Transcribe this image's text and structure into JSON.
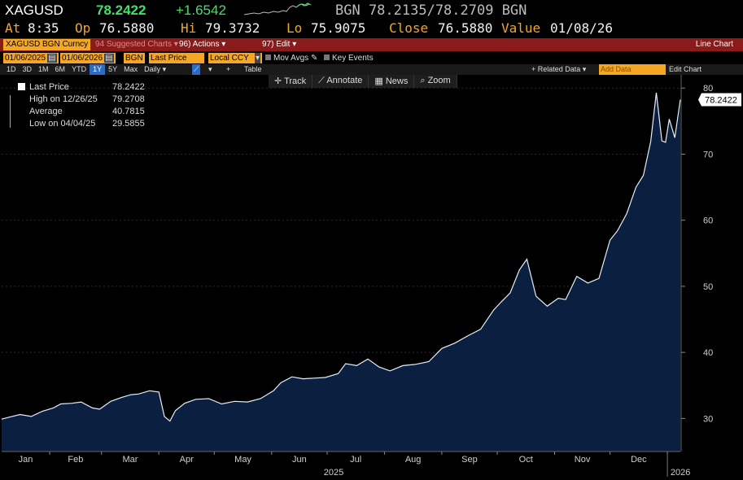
{
  "quote": {
    "ticker": "XAGUSD",
    "last": "78.2422",
    "change": "+1.6542",
    "bid_ask": "BGN 78.2135/78.2709 BGN",
    "at_label": "At",
    "at_value": "8:35",
    "open_label": "Op",
    "open_value": "76.5880",
    "high_label": "Hi",
    "high_value": "79.3732",
    "low_label": "Lo",
    "low_value": "75.9075",
    "close_label": "Close",
    "close_value": "76.5880",
    "value_label": "Value",
    "value_date": "01/08/26"
  },
  "toolbar": {
    "security": "XAGUSD BGN Curncy",
    "suggested": "94 Suggested Charts",
    "actions": "96) Actions",
    "edit": "97) Edit",
    "chart_type": "Line Chart"
  },
  "controls": {
    "start_date": "01/06/2025",
    "end_date": "01/06/2026",
    "source": "BGN",
    "field": "Last Price",
    "currency": "Local CCY",
    "mov_avgs": "Mov Avgs",
    "key_events": "Key Events"
  },
  "periods": {
    "items": [
      "1D",
      "3D",
      "1M",
      "6M",
      "YTD",
      "1Y",
      "5Y",
      "Max",
      "Daily"
    ],
    "selected": "1Y",
    "table": "Table",
    "related_data": "+ Related Data",
    "add_data": "Add Data",
    "edit_chart": "Edit Chart"
  },
  "chart_tools": {
    "track": "Track",
    "annotate": "Annotate",
    "news": "News",
    "zoom": "Zoom"
  },
  "legend": {
    "last_label": "Last Price",
    "last_value": "78.2422",
    "high_label": "High on 12/26/25",
    "high_value": "79.2708",
    "avg_label": "Average",
    "avg_value": "40.7815",
    "low_label": "Low on 04/04/25",
    "low_value": "29.5855"
  },
  "colors": {
    "area_fill": "#0b2040",
    "line": "#e8eef8",
    "up": "#3fe26a",
    "label_orange": "#f5a623",
    "toolbar_red": "#8b1a1a"
  },
  "chart_data": {
    "type": "area",
    "ylim": [
      25,
      82
    ],
    "yticks": [
      30,
      40,
      50,
      60,
      70,
      80
    ],
    "xlim": [
      "2025-01-06",
      "2026-01-08"
    ],
    "month_ticks": [
      "2025-01-01",
      "2025-02-01",
      "2025-03-01",
      "2025-04-01",
      "2025-05-01",
      "2025-06-01",
      "2025-07-01",
      "2025-08-01",
      "2025-09-01",
      "2025-10-01",
      "2025-11-01",
      "2025-12-01",
      "2026-01-01"
    ],
    "month_labels": [
      "Jan",
      "Feb",
      "Mar",
      "Apr",
      "May",
      "Jun",
      "Jul",
      "Aug",
      "Sep",
      "Oct",
      "Nov",
      "Dec"
    ],
    "year_labels": [
      "2025",
      "2026"
    ],
    "last_value_label": "78.2422",
    "series": [
      {
        "x": [
          "2025-01-06",
          "2025-01-10",
          "2025-01-16",
          "2025-01-22",
          "2025-01-28",
          "2025-02-03",
          "2025-02-07",
          "2025-02-13",
          "2025-02-18",
          "2025-02-24",
          "2025-02-28",
          "2025-03-06",
          "2025-03-12",
          "2025-03-17",
          "2025-03-21",
          "2025-03-27",
          "2025-04-01",
          "2025-04-04",
          "2025-04-07",
          "2025-04-10",
          "2025-04-15",
          "2025-04-21",
          "2025-04-28",
          "2025-05-05",
          "2025-05-12",
          "2025-05-19",
          "2025-05-26",
          "2025-06-02",
          "2025-06-06",
          "2025-06-12",
          "2025-06-18",
          "2025-06-24",
          "2025-06-30",
          "2025-07-07",
          "2025-07-11",
          "2025-07-17",
          "2025-07-23",
          "2025-07-29",
          "2025-08-04",
          "2025-08-11",
          "2025-08-18",
          "2025-08-25",
          "2025-09-01",
          "2025-09-08",
          "2025-09-15",
          "2025-09-22",
          "2025-09-29",
          "2025-10-03",
          "2025-10-08",
          "2025-10-13",
          "2025-10-17",
          "2025-10-22",
          "2025-10-28",
          "2025-11-03",
          "2025-11-07",
          "2025-11-13",
          "2025-11-19",
          "2025-11-25",
          "2025-12-01",
          "2025-12-05",
          "2025-12-10",
          "2025-12-15",
          "2025-12-19",
          "2025-12-23",
          "2025-12-26",
          "2025-12-29",
          "2025-12-31",
          "2026-01-02",
          "2026-01-05",
          "2026-01-08"
        ],
        "values": [
          29.9,
          30.2,
          30.6,
          30.3,
          31.1,
          31.6,
          32.2,
          32.3,
          32.5,
          31.6,
          31.4,
          32.6,
          33.2,
          33.6,
          33.7,
          34.2,
          34.0,
          30.3,
          29.6,
          31.2,
          32.3,
          32.9,
          33.0,
          32.2,
          32.6,
          32.5,
          33.0,
          34.2,
          35.4,
          36.3,
          36.0,
          36.1,
          36.2,
          36.8,
          38.3,
          38.0,
          39.0,
          37.8,
          37.2,
          38.0,
          38.2,
          38.6,
          40.6,
          41.4,
          42.5,
          43.5,
          46.4,
          47.6,
          49.0,
          52.5,
          54.1,
          48.5,
          47.0,
          48.2,
          48.0,
          51.5,
          50.5,
          51.2,
          57.0,
          58.4,
          61.0,
          65.0,
          66.8,
          71.9,
          79.3,
          72.0,
          71.8,
          75.3,
          72.5,
          78.24
        ]
      }
    ]
  }
}
